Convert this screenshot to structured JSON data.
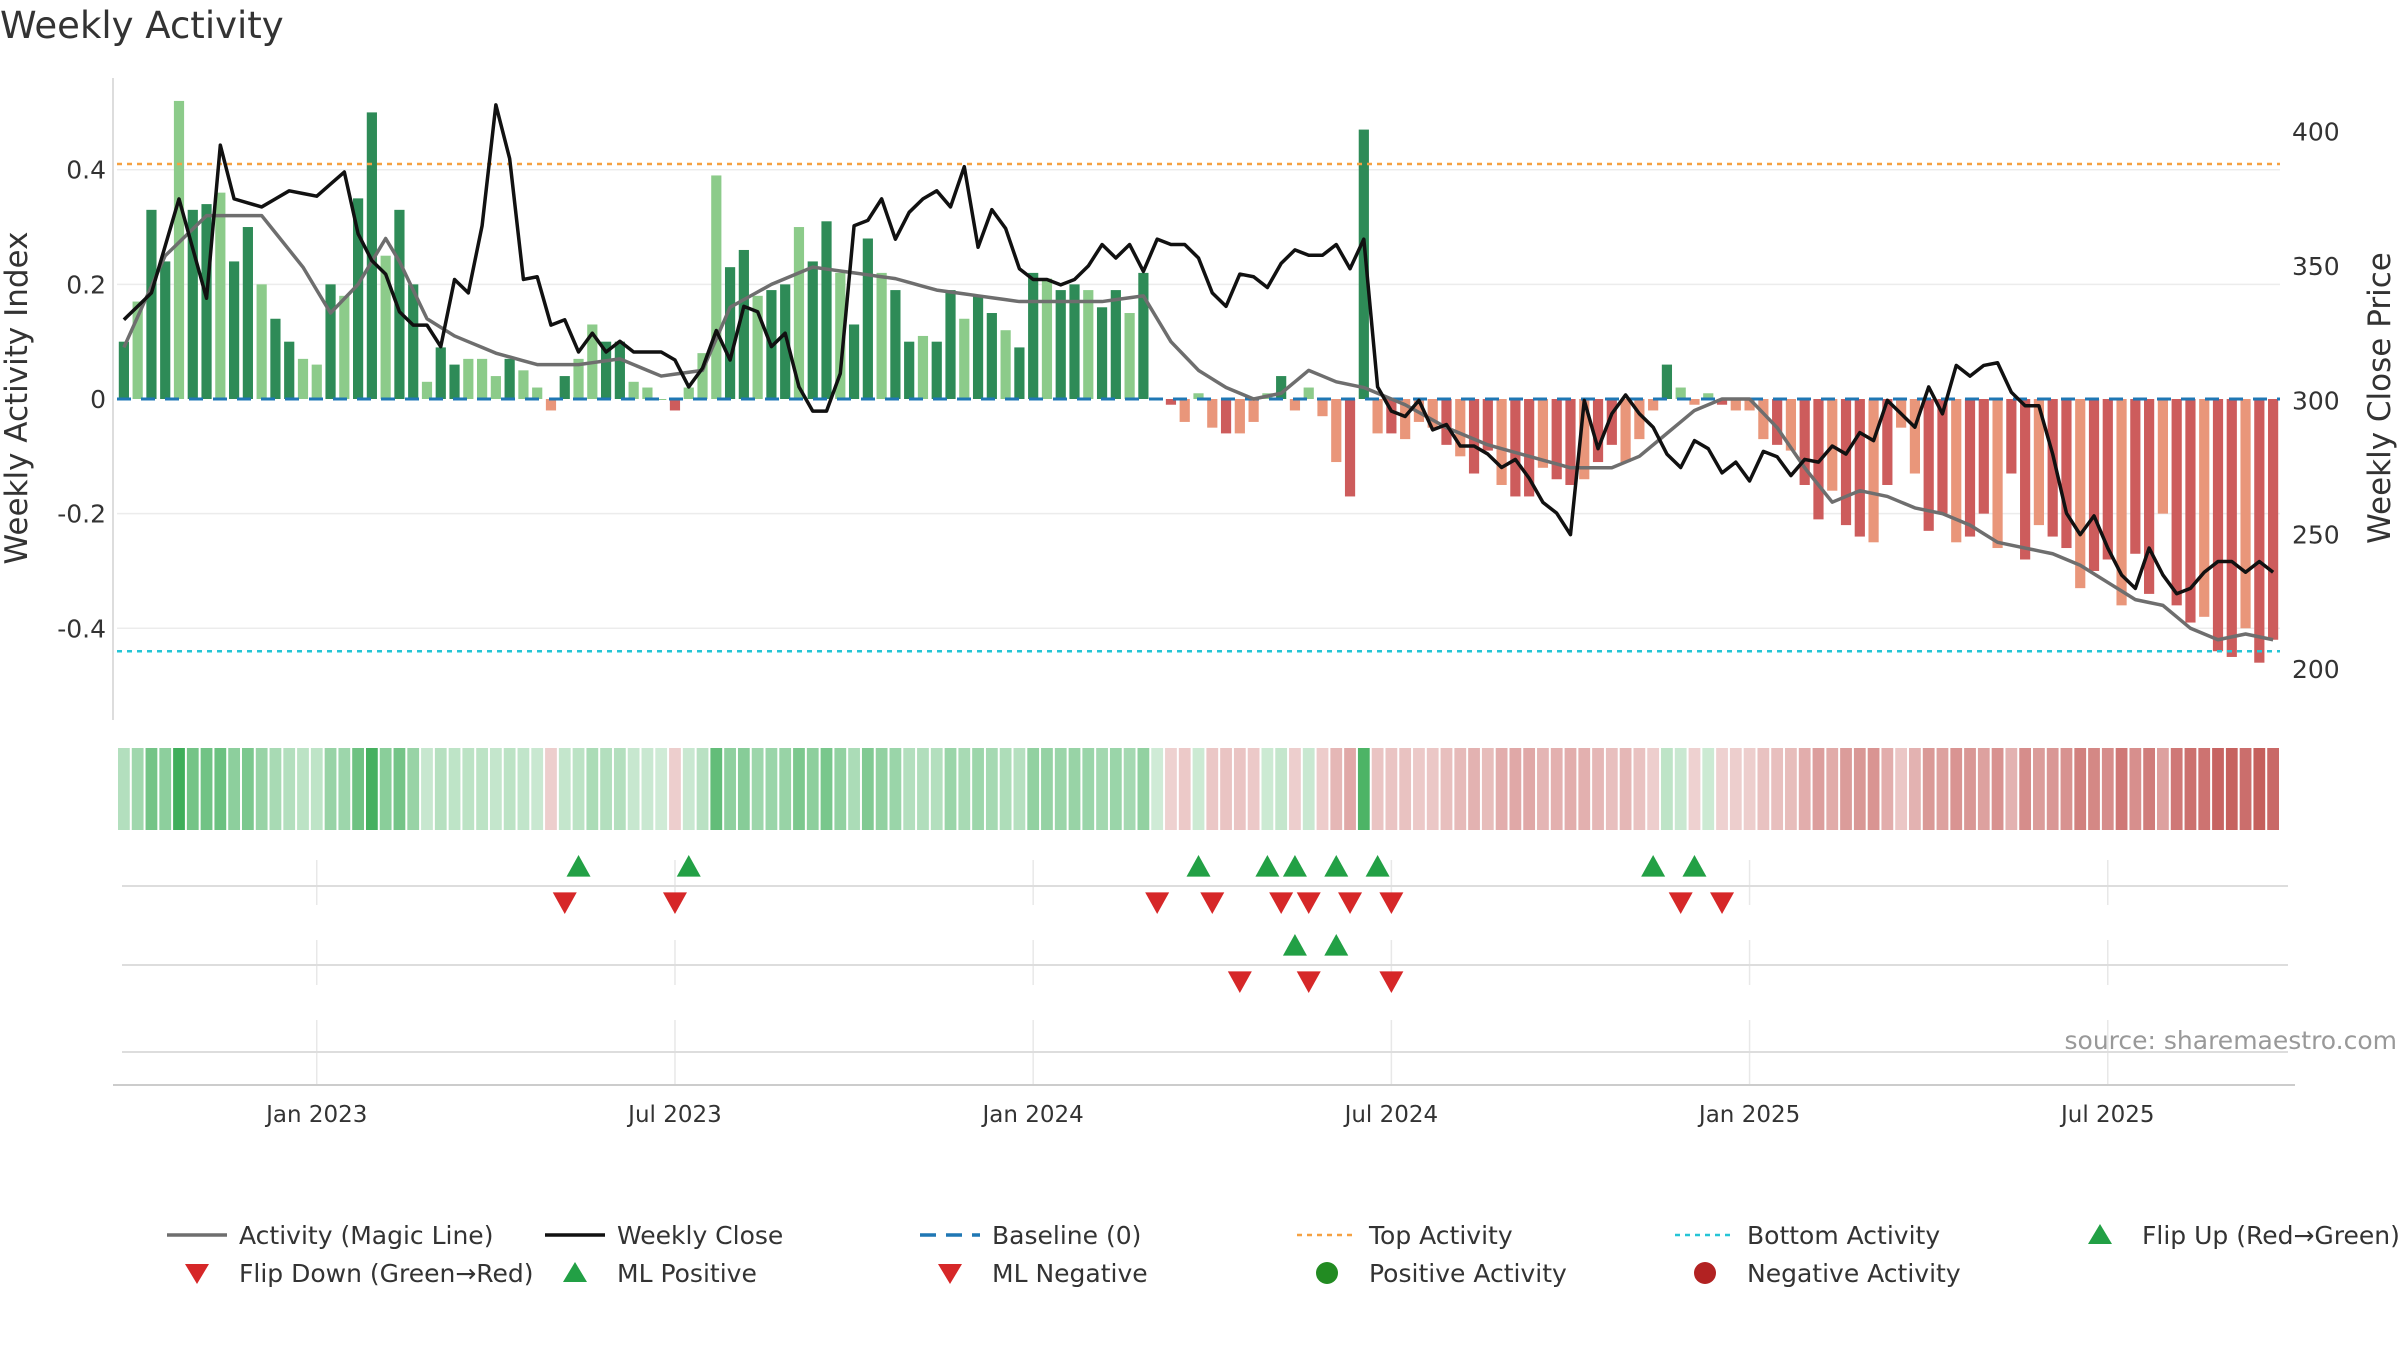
{
  "chart_data": {
    "type": "bar",
    "title": "Weekly Activity",
    "ylabel": "Weekly Activity Index",
    "ylabel_right": "Weekly Close Price",
    "source": "source: sharemaestro.com",
    "ylim": [
      -0.56,
      0.56
    ],
    "ylim_right": [
      181,
      420
    ],
    "yticks": [
      {
        "value": 0.4,
        "label": "0.4"
      },
      {
        "value": 0.2,
        "label": "0.2"
      },
      {
        "value": 0,
        "label": "0"
      },
      {
        "value": -0.2,
        "label": "-0.2"
      },
      {
        "value": -0.4,
        "label": "-0.4"
      }
    ],
    "yticks_right": [
      {
        "value": 400,
        "label": "400"
      },
      {
        "value": 350,
        "label": "350"
      },
      {
        "value": 300,
        "label": "300"
      },
      {
        "value": 250,
        "label": "250"
      },
      {
        "value": 200,
        "label": "200"
      }
    ],
    "x_start": "2022-09-30",
    "x_end": "2025-09-26",
    "week_count": 157,
    "xticks": [
      {
        "index": 14,
        "label": "Jan 2023"
      },
      {
        "index": 40,
        "label": "Jul 2023"
      },
      {
        "index": 66,
        "label": "Jan 2024"
      },
      {
        "index": 92,
        "label": "Jul 2024"
      },
      {
        "index": 118,
        "label": "Jan 2025"
      },
      {
        "index": 144,
        "label": "Jul 2025"
      }
    ],
    "top_activity": 0.41,
    "bottom_activity": -0.44,
    "bar_anchors": [
      [
        0,
        0.1
      ],
      [
        1,
        0.17
      ],
      [
        2,
        0.33
      ],
      [
        3,
        0.24
      ],
      [
        4,
        0.52
      ],
      [
        5,
        0.33
      ],
      [
        6,
        0.34
      ],
      [
        7,
        0.36
      ],
      [
        8,
        0.24
      ],
      [
        9,
        0.3
      ],
      [
        10,
        0.2
      ],
      [
        11,
        0.14
      ],
      [
        12,
        0.1
      ],
      [
        13,
        0.07
      ],
      [
        14,
        0.06
      ],
      [
        15,
        0.2
      ],
      [
        16,
        0.18
      ],
      [
        17,
        0.35
      ],
      [
        18,
        0.5
      ],
      [
        19,
        0.25
      ],
      [
        20,
        0.33
      ],
      [
        21,
        0.2
      ],
      [
        22,
        0.03
      ],
      [
        23,
        0.09
      ],
      [
        24,
        0.06
      ],
      [
        25,
        0.07
      ],
      [
        26,
        0.07
      ],
      [
        27,
        0.04
      ],
      [
        28,
        0.07
      ],
      [
        29,
        0.05
      ],
      [
        30,
        0.02
      ],
      [
        31,
        -0.02
      ],
      [
        32,
        0.04
      ],
      [
        33,
        0.07
      ],
      [
        34,
        0.13
      ],
      [
        35,
        0.1
      ],
      [
        36,
        0.1
      ],
      [
        37,
        0.03
      ],
      [
        38,
        0.02
      ],
      [
        39,
        0.0
      ],
      [
        40,
        -0.02
      ],
      [
        41,
        0.02
      ],
      [
        42,
        0.08
      ],
      [
        43,
        0.39
      ],
      [
        44,
        0.23
      ],
      [
        45,
        0.26
      ],
      [
        46,
        0.18
      ],
      [
        47,
        0.19
      ],
      [
        48,
        0.2
      ],
      [
        49,
        0.3
      ],
      [
        50,
        0.24
      ],
      [
        51,
        0.31
      ],
      [
        52,
        0.22
      ],
      [
        53,
        0.13
      ],
      [
        54,
        0.28
      ],
      [
        55,
        0.22
      ],
      [
        56,
        0.19
      ],
      [
        57,
        0.1
      ],
      [
        58,
        0.11
      ],
      [
        59,
        0.1
      ],
      [
        60,
        0.19
      ],
      [
        61,
        0.14
      ],
      [
        62,
        0.18
      ],
      [
        63,
        0.15
      ],
      [
        64,
        0.12
      ],
      [
        65,
        0.09
      ],
      [
        66,
        0.22
      ],
      [
        67,
        0.21
      ],
      [
        68,
        0.19
      ],
      [
        69,
        0.2
      ],
      [
        70,
        0.19
      ],
      [
        71,
        0.16
      ],
      [
        72,
        0.19
      ],
      [
        73,
        0.15
      ],
      [
        74,
        0.22
      ],
      [
        75,
        0.0
      ],
      [
        76,
        -0.01
      ],
      [
        77,
        -0.04
      ],
      [
        78,
        0.01
      ],
      [
        79,
        -0.05
      ],
      [
        80,
        -0.06
      ],
      [
        81,
        -0.06
      ],
      [
        82,
        -0.04
      ],
      [
        83,
        0.01
      ],
      [
        84,
        0.04
      ],
      [
        85,
        -0.02
      ],
      [
        86,
        0.02
      ],
      [
        87,
        -0.03
      ],
      [
        88,
        -0.11
      ],
      [
        89,
        -0.17
      ],
      [
        90,
        0.47
      ],
      [
        91,
        -0.06
      ],
      [
        92,
        -0.06
      ],
      [
        93,
        -0.07
      ],
      [
        94,
        -0.04
      ],
      [
        95,
        -0.05
      ],
      [
        96,
        -0.08
      ],
      [
        97,
        -0.1
      ],
      [
        98,
        -0.13
      ],
      [
        99,
        -0.09
      ],
      [
        100,
        -0.15
      ],
      [
        101,
        -0.17
      ],
      [
        102,
        -0.17
      ],
      [
        103,
        -0.12
      ],
      [
        104,
        -0.14
      ],
      [
        105,
        -0.15
      ],
      [
        106,
        -0.14
      ],
      [
        107,
        -0.11
      ],
      [
        108,
        -0.08
      ],
      [
        109,
        -0.11
      ],
      [
        110,
        -0.07
      ],
      [
        111,
        -0.02
      ],
      [
        112,
        0.06
      ],
      [
        113,
        0.02
      ],
      [
        114,
        -0.01
      ],
      [
        115,
        0.01
      ],
      [
        116,
        -0.01
      ],
      [
        117,
        -0.02
      ],
      [
        118,
        -0.02
      ],
      [
        119,
        -0.07
      ],
      [
        120,
        -0.08
      ],
      [
        121,
        -0.09
      ],
      [
        122,
        -0.15
      ],
      [
        123,
        -0.21
      ],
      [
        124,
        -0.16
      ],
      [
        125,
        -0.22
      ],
      [
        126,
        -0.24
      ],
      [
        127,
        -0.25
      ],
      [
        128,
        -0.15
      ],
      [
        129,
        -0.05
      ],
      [
        130,
        -0.13
      ],
      [
        131,
        -0.23
      ],
      [
        132,
        -0.2
      ],
      [
        133,
        -0.25
      ],
      [
        134,
        -0.24
      ],
      [
        135,
        -0.2
      ],
      [
        136,
        -0.26
      ],
      [
        137,
        -0.13
      ],
      [
        138,
        -0.28
      ],
      [
        139,
        -0.22
      ],
      [
        140,
        -0.24
      ],
      [
        141,
        -0.26
      ],
      [
        142,
        -0.33
      ],
      [
        143,
        -0.3
      ],
      [
        144,
        -0.28
      ],
      [
        145,
        -0.36
      ],
      [
        146,
        -0.27
      ],
      [
        147,
        -0.34
      ],
      [
        148,
        -0.2
      ],
      [
        149,
        -0.36
      ],
      [
        150,
        -0.39
      ],
      [
        151,
        -0.38
      ],
      [
        152,
        -0.44
      ],
      [
        153,
        -0.45
      ],
      [
        154,
        -0.4
      ],
      [
        155,
        -0.46
      ],
      [
        156,
        -0.42
      ]
    ],
    "close_anchors": [
      [
        0,
        330
      ],
      [
        2,
        340
      ],
      [
        4,
        375
      ],
      [
        6,
        338
      ],
      [
        7,
        395
      ],
      [
        8,
        375
      ],
      [
        10,
        372
      ],
      [
        12,
        378
      ],
      [
        14,
        376
      ],
      [
        16,
        385
      ],
      [
        17,
        362
      ],
      [
        18,
        352
      ],
      [
        19,
        347
      ],
      [
        20,
        333
      ],
      [
        21,
        328
      ],
      [
        22,
        328
      ],
      [
        23,
        320
      ],
      [
        24,
        345
      ],
      [
        25,
        340
      ],
      [
        26,
        365
      ],
      [
        27,
        410
      ],
      [
        28,
        390
      ],
      [
        29,
        345
      ],
      [
        30,
        346
      ],
      [
        31,
        328
      ],
      [
        32,
        330
      ],
      [
        33,
        318
      ],
      [
        34,
        325
      ],
      [
        35,
        318
      ],
      [
        36,
        322
      ],
      [
        37,
        318
      ],
      [
        38,
        318
      ],
      [
        39,
        318
      ],
      [
        40,
        315
      ],
      [
        41,
        305
      ],
      [
        42,
        312
      ],
      [
        43,
        326
      ],
      [
        44,
        315
      ],
      [
        45,
        335
      ],
      [
        46,
        333
      ],
      [
        47,
        320
      ],
      [
        48,
        325
      ],
      [
        49,
        305
      ],
      [
        50,
        296
      ],
      [
        51,
        296
      ],
      [
        52,
        310
      ],
      [
        53,
        365
      ],
      [
        54,
        367
      ],
      [
        55,
        375
      ],
      [
        56,
        360
      ],
      [
        57,
        370
      ],
      [
        58,
        375
      ],
      [
        59,
        378
      ],
      [
        60,
        372
      ],
      [
        61,
        387
      ],
      [
        62,
        357
      ],
      [
        63,
        371
      ],
      [
        64,
        364
      ],
      [
        65,
        349
      ],
      [
        66,
        345
      ],
      [
        67,
        345
      ],
      [
        68,
        343
      ],
      [
        69,
        345
      ],
      [
        70,
        350
      ],
      [
        71,
        358
      ],
      [
        72,
        353
      ],
      [
        73,
        358
      ],
      [
        74,
        348
      ],
      [
        75,
        360
      ],
      [
        76,
        358
      ],
      [
        77,
        358
      ],
      [
        78,
        353
      ],
      [
        79,
        340
      ],
      [
        80,
        335
      ],
      [
        81,
        347
      ],
      [
        82,
        346
      ],
      [
        83,
        342
      ],
      [
        84,
        351
      ],
      [
        85,
        356
      ],
      [
        86,
        354
      ],
      [
        87,
        354
      ],
      [
        88,
        358
      ],
      [
        89,
        349
      ],
      [
        90,
        360
      ],
      [
        91,
        305
      ],
      [
        92,
        296
      ],
      [
        93,
        294
      ],
      [
        94,
        300
      ],
      [
        95,
        289
      ],
      [
        96,
        291
      ],
      [
        97,
        283
      ],
      [
        98,
        283
      ],
      [
        99,
        280
      ],
      [
        100,
        275
      ],
      [
        101,
        278
      ],
      [
        102,
        271
      ],
      [
        103,
        262
      ],
      [
        104,
        258
      ],
      [
        105,
        250
      ],
      [
        106,
        300
      ],
      [
        107,
        282
      ],
      [
        108,
        295
      ],
      [
        109,
        302
      ],
      [
        110,
        295
      ],
      [
        111,
        290
      ],
      [
        112,
        280
      ],
      [
        113,
        275
      ],
      [
        114,
        285
      ],
      [
        115,
        282
      ],
      [
        116,
        273
      ],
      [
        117,
        277
      ],
      [
        118,
        270
      ],
      [
        119,
        281
      ],
      [
        120,
        279
      ],
      [
        121,
        272
      ],
      [
        122,
        278
      ],
      [
        123,
        277
      ],
      [
        124,
        283
      ],
      [
        125,
        280
      ],
      [
        126,
        288
      ],
      [
        127,
        285
      ],
      [
        128,
        300
      ],
      [
        129,
        295
      ],
      [
        130,
        290
      ],
      [
        131,
        305
      ],
      [
        132,
        295
      ],
      [
        133,
        313
      ],
      [
        134,
        309
      ],
      [
        135,
        313
      ],
      [
        136,
        314
      ],
      [
        137,
        303
      ],
      [
        138,
        298
      ],
      [
        139,
        298
      ],
      [
        140,
        280
      ],
      [
        141,
        258
      ],
      [
        142,
        250
      ],
      [
        143,
        257
      ],
      [
        144,
        245
      ],
      [
        145,
        235
      ],
      [
        146,
        230
      ],
      [
        147,
        245
      ],
      [
        148,
        235
      ],
      [
        149,
        228
      ],
      [
        150,
        230
      ],
      [
        151,
        236
      ],
      [
        152,
        240
      ],
      [
        153,
        240
      ],
      [
        154,
        236
      ],
      [
        155,
        240
      ],
      [
        156,
        236
      ]
    ],
    "magic_anchors": [
      [
        0,
        0.09
      ],
      [
        3,
        0.25
      ],
      [
        6,
        0.32
      ],
      [
        10,
        0.32
      ],
      [
        13,
        0.23
      ],
      [
        15,
        0.15
      ],
      [
        17,
        0.2
      ],
      [
        19,
        0.28
      ],
      [
        20,
        0.24
      ],
      [
        22,
        0.14
      ],
      [
        24,
        0.11
      ],
      [
        27,
        0.08
      ],
      [
        30,
        0.06
      ],
      [
        33,
        0.06
      ],
      [
        36,
        0.07
      ],
      [
        39,
        0.04
      ],
      [
        42,
        0.05
      ],
      [
        44,
        0.16
      ],
      [
        47,
        0.2
      ],
      [
        50,
        0.23
      ],
      [
        53,
        0.22
      ],
      [
        56,
        0.21
      ],
      [
        59,
        0.19
      ],
      [
        62,
        0.18
      ],
      [
        65,
        0.17
      ],
      [
        68,
        0.17
      ],
      [
        71,
        0.17
      ],
      [
        74,
        0.18
      ],
      [
        76,
        0.1
      ],
      [
        78,
        0.05
      ],
      [
        80,
        0.02
      ],
      [
        82,
        0.0
      ],
      [
        84,
        0.01
      ],
      [
        86,
        0.05
      ],
      [
        88,
        0.03
      ],
      [
        90,
        0.02
      ],
      [
        93,
        -0.01
      ],
      [
        96,
        -0.05
      ],
      [
        99,
        -0.08
      ],
      [
        102,
        -0.1
      ],
      [
        105,
        -0.12
      ],
      [
        108,
        -0.12
      ],
      [
        110,
        -0.1
      ],
      [
        112,
        -0.06
      ],
      [
        114,
        -0.02
      ],
      [
        116,
        0.0
      ],
      [
        118,
        0.0
      ],
      [
        120,
        -0.05
      ],
      [
        122,
        -0.12
      ],
      [
        124,
        -0.18
      ],
      [
        126,
        -0.16
      ],
      [
        128,
        -0.17
      ],
      [
        130,
        -0.19
      ],
      [
        132,
        -0.2
      ],
      [
        134,
        -0.22
      ],
      [
        136,
        -0.25
      ],
      [
        138,
        -0.26
      ],
      [
        140,
        -0.27
      ],
      [
        142,
        -0.29
      ],
      [
        144,
        -0.32
      ],
      [
        146,
        -0.35
      ],
      [
        148,
        -0.36
      ],
      [
        150,
        -0.4
      ],
      [
        152,
        -0.42
      ],
      [
        154,
        -0.41
      ],
      [
        156,
        -0.42
      ]
    ],
    "flip_up": [
      33,
      41,
      78,
      83,
      85,
      88,
      91,
      111,
      114
    ],
    "flip_down": [
      32,
      40,
      75,
      79,
      84,
      86,
      89,
      92,
      113,
      116
    ],
    "ml_positive": [
      85,
      88
    ],
    "ml_negative": [
      81,
      86,
      92
    ],
    "legend": [
      {
        "label": "Activity (Magic Line)",
        "symbol": "line",
        "color": "#6e6e6e"
      },
      {
        "label": "Weekly Close",
        "symbol": "line",
        "color": "#111111"
      },
      {
        "label": "Baseline (0)",
        "symbol": "dash",
        "color": "#1f77b4"
      },
      {
        "label": "Top Activity",
        "symbol": "dot-line",
        "color": "#f5a142"
      },
      {
        "label": "Bottom Activity",
        "symbol": "dot-line",
        "color": "#25c5d6"
      },
      {
        "label": "Flip Up (Red→Green)",
        "symbol": "triangle-up",
        "color": "#22a045"
      },
      {
        "label": "Flip Down (Green→Red)",
        "symbol": "triangle-down",
        "color": "#d62728"
      },
      {
        "label": "ML Positive",
        "symbol": "triangle-up",
        "color": "#22a045"
      },
      {
        "label": "ML Negative",
        "symbol": "triangle-down",
        "color": "#d62728"
      },
      {
        "label": "Positive Activity",
        "symbol": "circle",
        "color": "#228b22"
      },
      {
        "label": "Negative Activity",
        "symbol": "circle",
        "color": "#b22222"
      }
    ],
    "colors": {
      "pos_strong": "#2e8b57",
      "pos_light": "#8ccb8a",
      "neg_strong": "#cd5c5c",
      "neg_light": "#e9967a",
      "magic_line": "#6e6e6e",
      "close_line": "#111111",
      "baseline": "#1f77b4",
      "top_line": "#f5a142",
      "bottom_line": "#25c5d6",
      "marker_up": "#22a045",
      "marker_down": "#d62728",
      "grid": "#ececec"
    }
  }
}
